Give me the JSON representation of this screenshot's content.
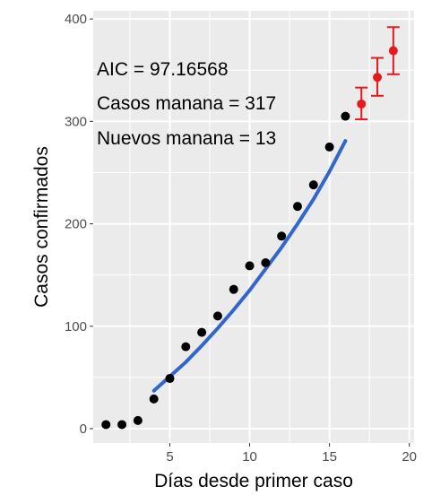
{
  "chart_data": {
    "type": "scatter",
    "xlabel": "Días desde primer caso",
    "ylabel": "Casos confirmados",
    "xlim": [
      0.2,
      20.3
    ],
    "ylim": [
      -14,
      408
    ],
    "x_ticks": [
      5,
      10,
      15,
      20
    ],
    "y_ticks": [
      0,
      100,
      200,
      300,
      400
    ],
    "grid": true,
    "annotations": [
      "AIC =  97.16568",
      "Casos manana = 317",
      "Nuevos manana = 13"
    ],
    "colors": {
      "panel": "#ebebeb",
      "grid": "#ffffff",
      "observed": "#000000",
      "fit": "#3366cc",
      "forecast": "#e41a1c"
    },
    "series": [
      {
        "kind": "points",
        "color": "#000000",
        "x": [
          1,
          2,
          3,
          4,
          5,
          6,
          7,
          8,
          9,
          10,
          11,
          12,
          13,
          14,
          15,
          16
        ],
        "y": [
          4,
          4,
          8,
          29,
          49,
          80,
          94,
          110,
          136,
          159,
          162,
          188,
          217,
          238,
          275,
          305
        ]
      },
      {
        "kind": "fit_line",
        "color": "#3366cc",
        "x": [
          4,
          5,
          6,
          7,
          8,
          9,
          10,
          11,
          12,
          13,
          14,
          15,
          16
        ],
        "y": [
          37,
          51,
          65,
          81,
          98,
          116,
          135,
          156,
          177,
          200,
          224,
          251,
          281
        ]
      },
      {
        "kind": "forecast_points",
        "color": "#e41a1c",
        "x": [
          17,
          18,
          19
        ],
        "y": [
          317,
          343,
          369
        ],
        "lower": [
          302,
          325,
          346
        ],
        "upper": [
          333,
          362,
          392
        ]
      }
    ]
  }
}
